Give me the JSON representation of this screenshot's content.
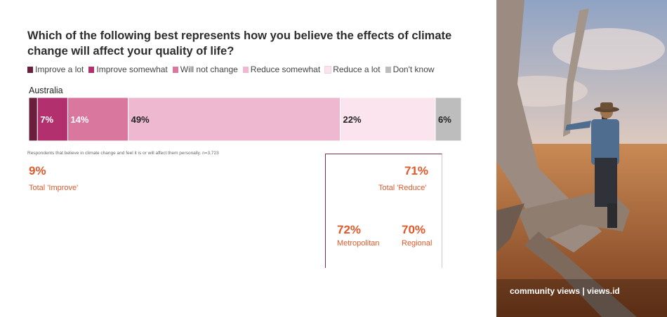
{
  "title": "Which of the following best represents how you believe the effects of climate change will affect your quality of life?",
  "legend": [
    {
      "label": "Improve a lot",
      "color": "#6b1f3c"
    },
    {
      "label": "Improve somewhat",
      "color": "#b3306e"
    },
    {
      "label": "Will not change",
      "color": "#d9779f"
    },
    {
      "label": "Reduce somewhat",
      "color": "#eeb8d1"
    },
    {
      "label": "Reduce a lot",
      "color": "#fce4ef"
    },
    {
      "label": "Don't know",
      "color": "#bdbdbd"
    }
  ],
  "chart_data": {
    "type": "bar",
    "orientation": "horizontal-stacked",
    "categories": [
      "Australia"
    ],
    "series": [
      {
        "name": "Improve a lot",
        "values": [
          2
        ],
        "label": ""
      },
      {
        "name": "Improve somewhat",
        "values": [
          7
        ],
        "label": "7%"
      },
      {
        "name": "Will not change",
        "values": [
          14
        ],
        "label": "14%"
      },
      {
        "name": "Reduce somewhat",
        "values": [
          49
        ],
        "label": "49%"
      },
      {
        "name": "Reduce a lot",
        "values": [
          22
        ],
        "label": "22%"
      },
      {
        "name": "Don't know",
        "values": [
          6
        ],
        "label": "6%"
      }
    ]
  },
  "footnote": "Respondents that believe in climate change and feel it is or will affect them personally. n=3,723",
  "summary": {
    "improve": {
      "value": "9%",
      "label": "Total 'Improve'"
    },
    "reduce": {
      "value": "71%",
      "label": "Total 'Reduce'"
    },
    "metro": {
      "value": "72%",
      "label": "Metropolitan"
    },
    "regional": {
      "value": "70%",
      "label": "Regional"
    }
  },
  "watermark": "community views | views.id",
  "photo_icon": "outback-man-tree-photo"
}
